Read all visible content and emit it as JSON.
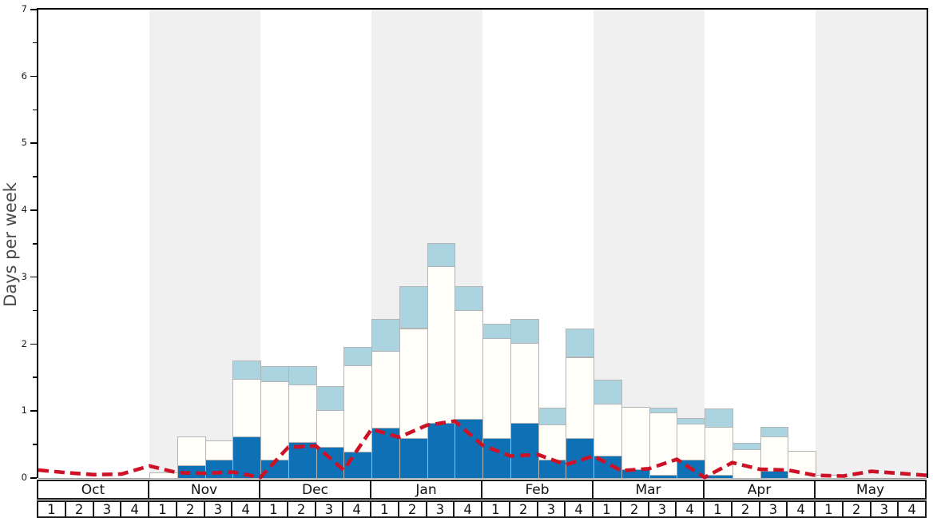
{
  "chart_data": {
    "type": "bar",
    "title": "",
    "xlabel": "",
    "ylabel": "Days per week",
    "ylim": [
      0,
      7
    ],
    "yticks": [
      "0",
      "1",
      "2",
      "3",
      "4",
      "5",
      "6",
      "7"
    ],
    "minor_tick_step": 0.5,
    "grid": false,
    "legend": "none",
    "months": [
      {
        "label": "Oct",
        "shaded": false
      },
      {
        "label": "Nov",
        "shaded": true
      },
      {
        "label": "Dec",
        "shaded": false
      },
      {
        "label": "Jan",
        "shaded": true
      },
      {
        "label": "Feb",
        "shaded": false
      },
      {
        "label": "Mar",
        "shaded": true
      },
      {
        "label": "Apr",
        "shaded": false
      },
      {
        "label": "May",
        "shaded": true
      }
    ],
    "week_labels": [
      "1",
      "2",
      "3",
      "4"
    ],
    "series": [
      {
        "name": "dark-blue-segment",
        "color": "#0e71b6",
        "values": [
          0,
          0,
          0,
          0,
          0,
          0.19,
          0.27,
          0.62,
          0.28,
          0.54,
          0.47,
          0.4,
          0.75,
          0.6,
          0.82,
          0.89,
          0.6,
          0.82,
          0.27,
          0.6,
          0.34,
          0.13,
          0.05,
          0.27,
          0.05,
          0,
          0.11,
          0,
          0,
          0,
          0,
          0
        ]
      },
      {
        "name": "white-segment",
        "color": "#fffef8",
        "values": [
          0,
          0,
          0,
          0,
          0.08,
          0.43,
          0.29,
          0.86,
          1.17,
          0.86,
          0.55,
          1.28,
          1.15,
          1.64,
          2.34,
          1.62,
          1.49,
          1.2,
          0.53,
          1.21,
          0.77,
          0.93,
          0.93,
          0.54,
          0.72,
          0.43,
          0.51,
          0.41,
          0.05,
          0,
          0,
          0
        ]
      },
      {
        "name": "light-blue-segment",
        "color": "#abd3e0",
        "values": [
          0,
          0,
          0,
          0,
          0,
          0,
          0,
          0.28,
          0.22,
          0.27,
          0.35,
          0.28,
          0.48,
          0.63,
          0.35,
          0.36,
          0.22,
          0.36,
          0.25,
          0.43,
          0.36,
          0,
          0.07,
          0.09,
          0.27,
          0.09,
          0.15,
          0,
          0,
          0,
          0,
          0
        ]
      }
    ],
    "line": {
      "name": "red-dashed-line",
      "color": "#cd1227",
      "style": "dashed",
      "x_unit": "week-boundaries",
      "values": [
        0.12,
        0.08,
        0.05,
        0.06,
        0.18,
        0.08,
        0.07,
        0.09,
        0.01,
        0.46,
        0.48,
        0.12,
        0.73,
        0.61,
        0.79,
        0.85,
        0.49,
        0.33,
        0.35,
        0.2,
        0.33,
        0.11,
        0.14,
        0.28,
        0.01,
        0.23,
        0.13,
        0.12,
        0.04,
        0.03,
        0.1,
        0.07,
        0.04
      ]
    },
    "band_color": "#f0f0f0",
    "bar_border_color": "#b4b4b4",
    "axis_color": "#000000"
  }
}
